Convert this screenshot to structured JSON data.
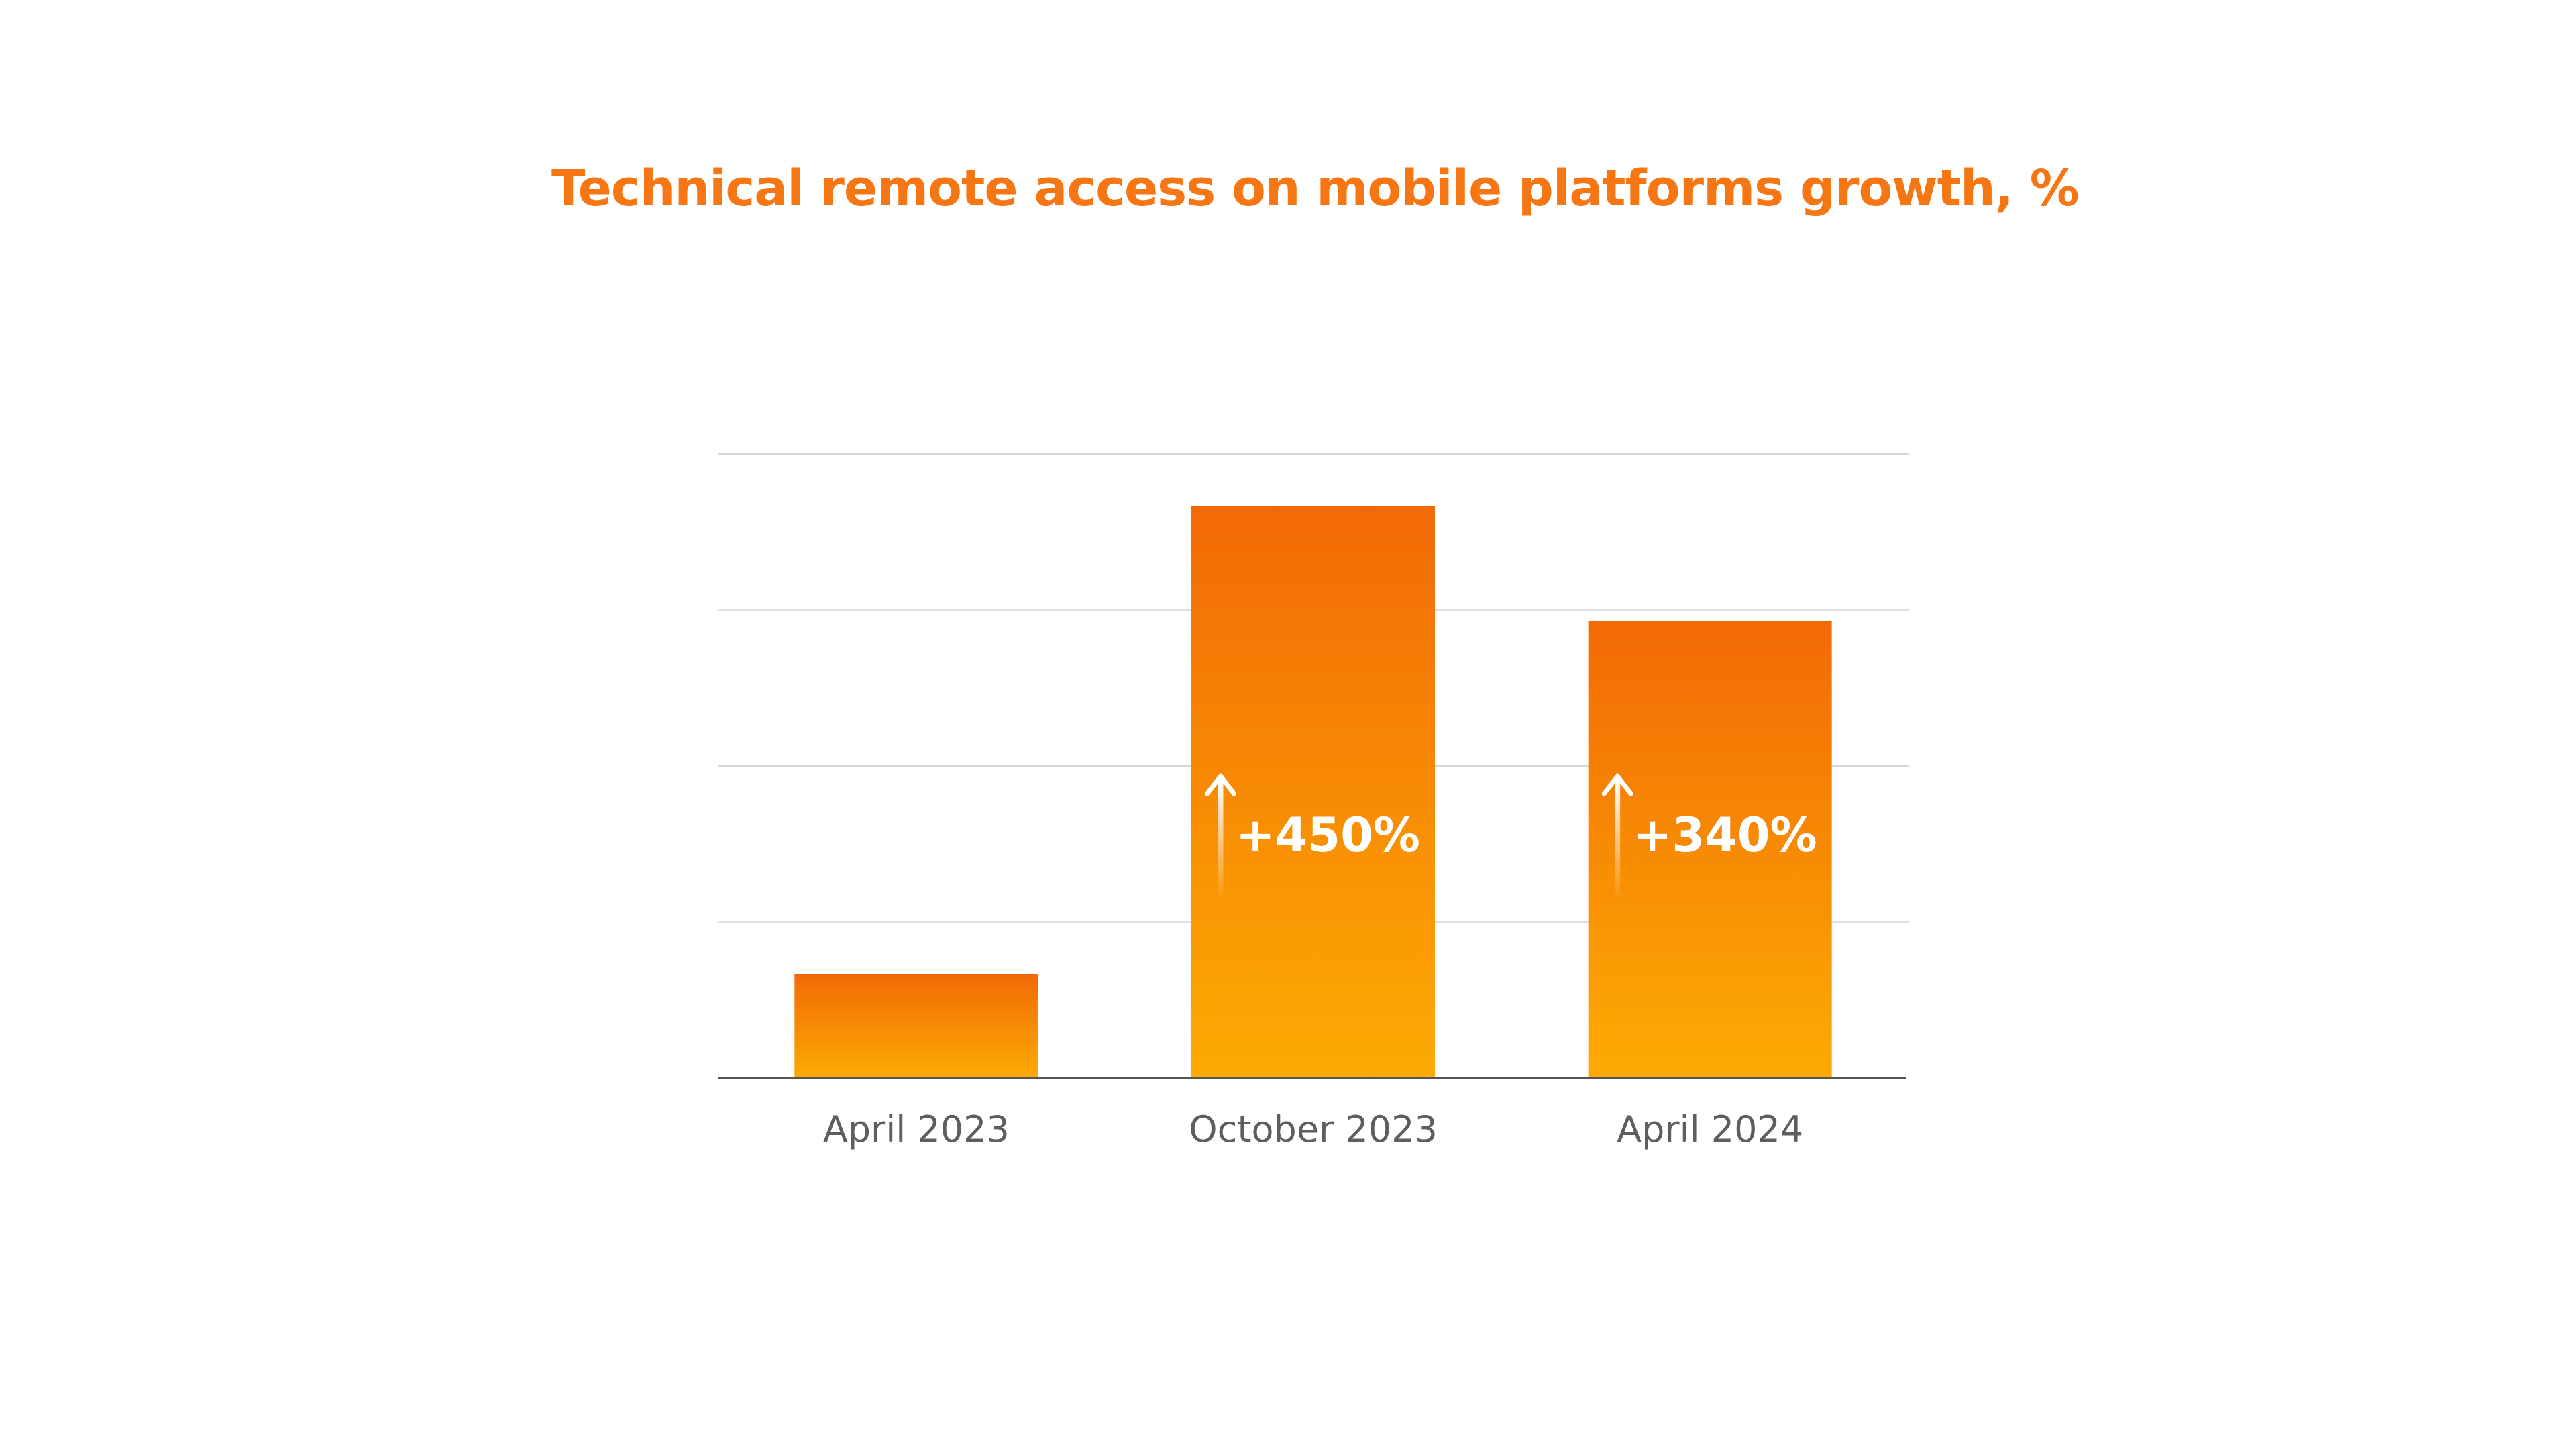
{
  "chart_data": {
    "type": "bar",
    "title": "Technical remote access on mobile platforms growth, %",
    "categories": [
      "April 2023",
      "October 2023",
      "April 2024"
    ],
    "values": [
      100,
      550,
      440
    ],
    "annotations": [
      "",
      "+450%",
      "+340%"
    ],
    "ylim": [
      0,
      600
    ],
    "grid": true,
    "y_tick_labels_shown": false,
    "xlabel": "",
    "ylabel": "",
    "colors": {
      "title": "#f77614",
      "bar_top": "#f26a06",
      "bar_bottom": "#fcab03",
      "grid": "#d7d7d7",
      "axis": "#555555",
      "tick_label": "#5e5e5e",
      "annotation_text": "#ffffff"
    }
  }
}
